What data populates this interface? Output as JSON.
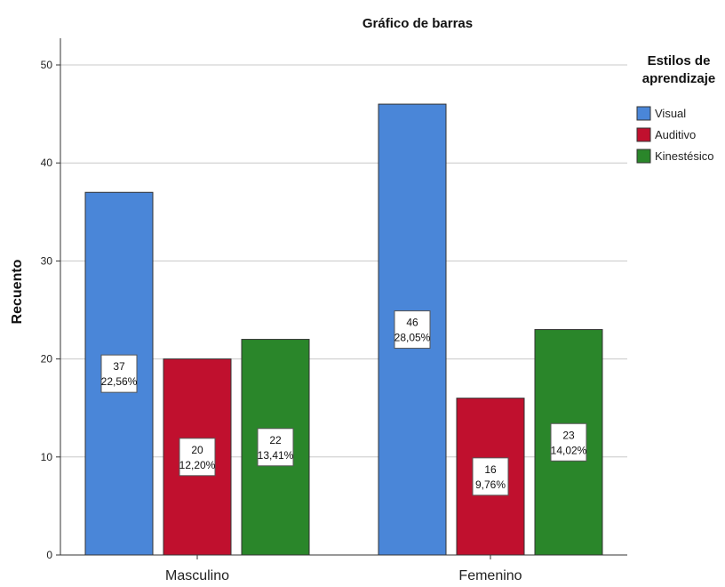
{
  "chart_data": {
    "type": "bar",
    "title": "Gráfico de barras",
    "ylabel": "Recuento",
    "xlabel": "",
    "ylim": [
      0,
      50
    ],
    "yticks": [
      0,
      10,
      20,
      30,
      40,
      50
    ],
    "grid": true,
    "categories": [
      "Masculino",
      "Femenino"
    ],
    "legend": {
      "title_lines": [
        "Estilos de",
        "aprendizaje"
      ],
      "placement": "top-right"
    },
    "series": [
      {
        "name": "Visual",
        "color": "#4a86d8",
        "values": [
          37,
          46
        ],
        "labels": [
          "22,56%",
          "28,05%"
        ]
      },
      {
        "name": "Auditivo",
        "color": "#c0102e",
        "values": [
          20,
          16
        ],
        "labels": [
          "12,20%",
          "9,76%"
        ]
      },
      {
        "name": "Kinestésico",
        "color": "#2a862a",
        "values": [
          22,
          23
        ],
        "labels": [
          "13,41%",
          "14,02%"
        ]
      }
    ]
  }
}
